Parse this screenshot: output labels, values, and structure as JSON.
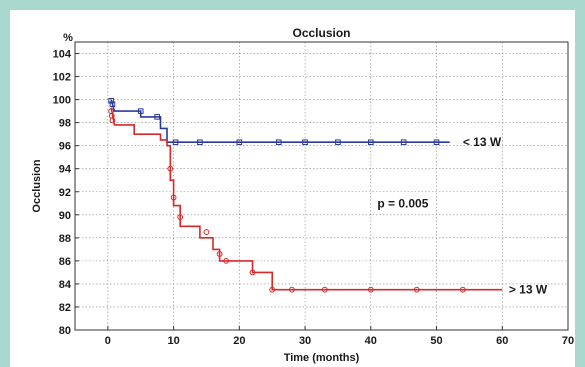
{
  "chart_data": {
    "type": "line",
    "title": "Occlusion",
    "xlabel": "Time (months)",
    "ylabel": "Occlusion",
    "y_unit": "%",
    "xlim": [
      -5,
      70
    ],
    "ylim": [
      80,
      105
    ],
    "x_ticks": [
      0,
      10,
      20,
      30,
      40,
      50,
      60,
      70
    ],
    "y_ticks": [
      80,
      82,
      84,
      86,
      88,
      90,
      92,
      94,
      96,
      98,
      100,
      102,
      104
    ],
    "grid": true,
    "step": true,
    "series": [
      {
        "name": "< 13 W",
        "color": "#2b3a9a",
        "points": [
          [
            0.5,
            100
          ],
          [
            1,
            99
          ],
          [
            5,
            99
          ],
          [
            5,
            98.5
          ],
          [
            8,
            98.5
          ],
          [
            8,
            97.5
          ],
          [
            9,
            97.5
          ],
          [
            9,
            96.3
          ],
          [
            52,
            96.3
          ]
        ],
        "censored": [
          [
            0.5,
            99.9
          ],
          [
            0.7,
            99.6
          ],
          [
            5,
            99
          ],
          [
            7.5,
            98.5
          ],
          [
            10.3,
            96.3
          ],
          [
            14,
            96.3
          ],
          [
            20,
            96.3
          ],
          [
            26,
            96.3
          ],
          [
            30,
            96.3
          ],
          [
            35,
            96.3
          ],
          [
            40,
            96.3
          ],
          [
            45,
            96.3
          ],
          [
            50,
            96.3
          ]
        ]
      },
      {
        "name": "> 13 W",
        "color": "#d42a2a",
        "points": [
          [
            0.5,
            99.3
          ],
          [
            1,
            97.8
          ],
          [
            4,
            97.8
          ],
          [
            4,
            97
          ],
          [
            8,
            97
          ],
          [
            8,
            96.5
          ],
          [
            9,
            96.5
          ],
          [
            9,
            96
          ],
          [
            9.5,
            96
          ],
          [
            9.5,
            93
          ],
          [
            10,
            93
          ],
          [
            10,
            90.8
          ],
          [
            11,
            90.8
          ],
          [
            11,
            89
          ],
          [
            14,
            89
          ],
          [
            14,
            88
          ],
          [
            16,
            88
          ],
          [
            16,
            87
          ],
          [
            17,
            87
          ],
          [
            17,
            86
          ],
          [
            22,
            86
          ],
          [
            22,
            85
          ],
          [
            25,
            85
          ],
          [
            25,
            83.5
          ],
          [
            60,
            83.5
          ]
        ],
        "censored": [
          [
            0.5,
            99
          ],
          [
            0.6,
            98.6
          ],
          [
            0.7,
            98.2
          ],
          [
            9.5,
            94
          ],
          [
            10,
            91.5
          ],
          [
            11,
            89.8
          ],
          [
            15,
            88.5
          ],
          [
            17,
            86.6
          ],
          [
            18,
            86
          ],
          [
            22,
            85
          ],
          [
            25,
            83.5
          ],
          [
            28,
            83.5
          ],
          [
            33,
            83.5
          ],
          [
            40,
            83.5
          ],
          [
            47,
            83.5
          ],
          [
            54,
            83.5
          ]
        ]
      }
    ],
    "annotations": [
      {
        "text": "p = 0.005",
        "x": 41,
        "y": 91
      },
      {
        "text": "< 13 W",
        "x": 54,
        "y": 96.3
      },
      {
        "text": "> 13 W",
        "x": 61,
        "y": 83.5
      }
    ]
  }
}
